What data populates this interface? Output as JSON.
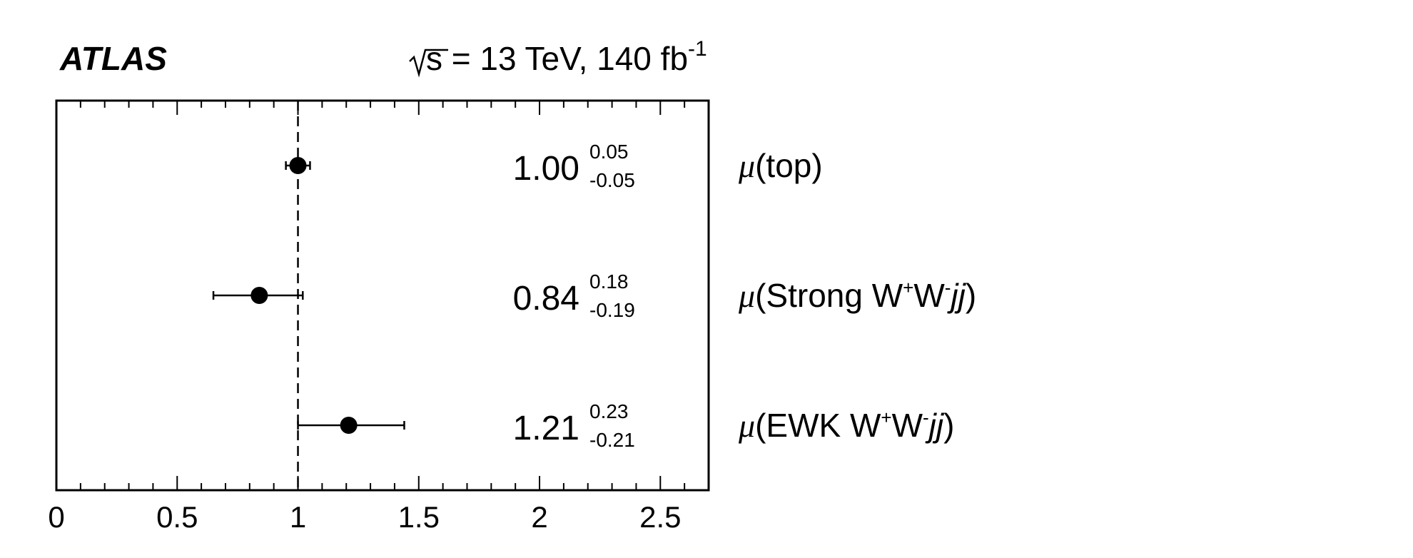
{
  "header": {
    "experiment": "ATLAS",
    "energy_prefix": "√s",
    "energy_rest": " = 13 TeV, 140 fb",
    "lumi_superscript": "-1"
  },
  "chart_data": {
    "type": "scatter",
    "orientation": "horizontal",
    "xlim": [
      0,
      2.7
    ],
    "xticks": [
      0,
      0.5,
      1,
      1.5,
      2,
      2.5
    ],
    "xtick_labels": [
      "0",
      "0.5",
      "1",
      "1.5",
      "2",
      "2.5"
    ],
    "reference_line": 1,
    "grid": false,
    "points": [
      {
        "label_mu": "μ",
        "label_parts": [
          "(top)"
        ],
        "value": 1.0,
        "value_text": "1.00",
        "err_up": 0.05,
        "err_down": 0.05,
        "up_text": "0.05",
        "down_text": "-0.05"
      },
      {
        "label_mu": "μ",
        "label_parts": [
          "(Strong W",
          "+",
          "W",
          "-",
          "jj",
          ")"
        ],
        "value": 0.84,
        "value_text": "0.84",
        "err_up": 0.18,
        "err_down": 0.19,
        "up_text": "0.18",
        "down_text": "-0.19"
      },
      {
        "label_mu": "μ",
        "label_parts": [
          "(EWK W",
          "+",
          "W",
          "-",
          "jj",
          ")"
        ],
        "value": 1.21,
        "value_text": "1.21",
        "err_up": 0.23,
        "err_down": 0.21,
        "up_text": "0.23",
        "down_text": "-0.21"
      }
    ]
  }
}
